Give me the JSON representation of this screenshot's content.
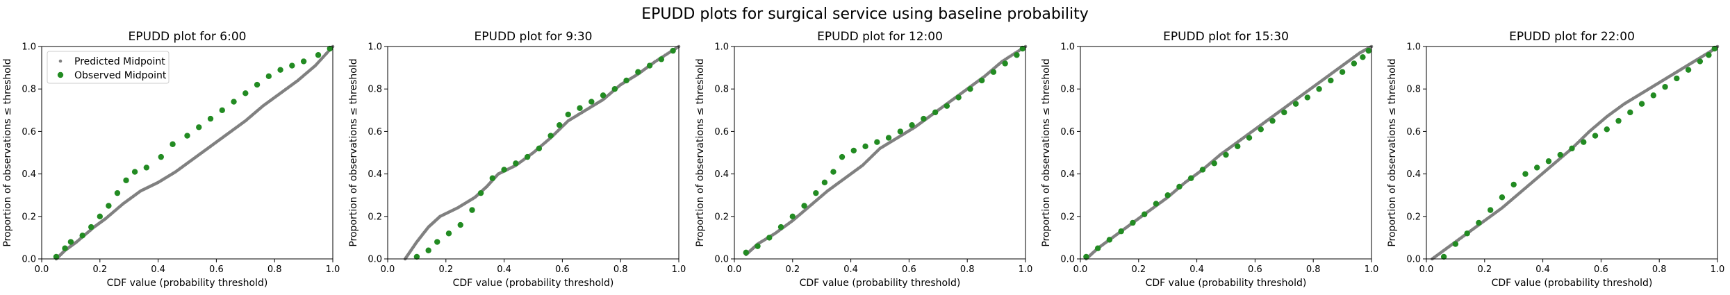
{
  "suptitle": "EPUDD plots for surgical service using baseline probability",
  "legend": {
    "predicted": "Predicted Midpoint",
    "observed": "Observed Midpoint",
    "placement": "upper-left of first panel"
  },
  "colors": {
    "predicted": "#808080",
    "observed": "#228b22",
    "background": "#ffffff"
  },
  "chart_data": [
    {
      "type": "scatter",
      "title": "EPUDD plot for 6:00",
      "xlabel": "CDF value (probability threshold)",
      "ylabel": "Proportion of observations ≤ threshold",
      "xlim": [
        0,
        1
      ],
      "ylim": [
        0,
        1
      ],
      "xticks": [
        "0.0",
        "0.2",
        "0.4",
        "0.6",
        "0.8",
        "1.0"
      ],
      "yticks": [
        "0.0",
        "0.2",
        "0.4",
        "0.6",
        "0.8",
        "1.0"
      ],
      "series": [
        {
          "name": "Predicted Midpoint",
          "points": [
            [
              0.05,
              0.0
            ],
            [
              0.08,
              0.04
            ],
            [
              0.12,
              0.08
            ],
            [
              0.18,
              0.15
            ],
            [
              0.22,
              0.19
            ],
            [
              0.28,
              0.26
            ],
            [
              0.34,
              0.32
            ],
            [
              0.4,
              0.36
            ],
            [
              0.46,
              0.41
            ],
            [
              0.52,
              0.47
            ],
            [
              0.58,
              0.53
            ],
            [
              0.64,
              0.59
            ],
            [
              0.7,
              0.65
            ],
            [
              0.76,
              0.72
            ],
            [
              0.82,
              0.78
            ],
            [
              0.88,
              0.84
            ],
            [
              0.94,
              0.91
            ],
            [
              1.0,
              1.0
            ]
          ]
        },
        {
          "name": "Observed Midpoint",
          "points": [
            [
              0.05,
              0.01
            ],
            [
              0.08,
              0.05
            ],
            [
              0.1,
              0.08
            ],
            [
              0.14,
              0.11
            ],
            [
              0.17,
              0.15
            ],
            [
              0.2,
              0.2
            ],
            [
              0.23,
              0.25
            ],
            [
              0.26,
              0.31
            ],
            [
              0.29,
              0.37
            ],
            [
              0.32,
              0.41
            ],
            [
              0.36,
              0.43
            ],
            [
              0.41,
              0.48
            ],
            [
              0.45,
              0.54
            ],
            [
              0.5,
              0.58
            ],
            [
              0.54,
              0.62
            ],
            [
              0.58,
              0.66
            ],
            [
              0.62,
              0.7
            ],
            [
              0.66,
              0.74
            ],
            [
              0.7,
              0.78
            ],
            [
              0.74,
              0.82
            ],
            [
              0.78,
              0.86
            ],
            [
              0.82,
              0.89
            ],
            [
              0.86,
              0.91
            ],
            [
              0.9,
              0.93
            ],
            [
              0.95,
              0.96
            ],
            [
              0.99,
              0.99
            ]
          ]
        }
      ]
    },
    {
      "type": "scatter",
      "title": "EPUDD plot for 9:30",
      "xlabel": "CDF value (probability threshold)",
      "ylabel": "Proportion of observations ≤ threshold",
      "xlim": [
        0,
        1
      ],
      "ylim": [
        0,
        1
      ],
      "xticks": [
        "0.0",
        "0.2",
        "0.4",
        "0.6",
        "0.8",
        "1.0"
      ],
      "yticks": [
        "0.0",
        "0.2",
        "0.4",
        "0.6",
        "0.8",
        "1.0"
      ],
      "series": [
        {
          "name": "Predicted Midpoint",
          "points": [
            [
              0.06,
              0.0
            ],
            [
              0.1,
              0.08
            ],
            [
              0.14,
              0.15
            ],
            [
              0.18,
              0.2
            ],
            [
              0.24,
              0.24
            ],
            [
              0.3,
              0.29
            ],
            [
              0.34,
              0.34
            ],
            [
              0.38,
              0.4
            ],
            [
              0.44,
              0.44
            ],
            [
              0.5,
              0.5
            ],
            [
              0.56,
              0.57
            ],
            [
              0.62,
              0.65
            ],
            [
              0.68,
              0.7
            ],
            [
              0.74,
              0.75
            ],
            [
              0.8,
              0.82
            ],
            [
              0.86,
              0.87
            ],
            [
              0.92,
              0.93
            ],
            [
              1.0,
              1.0
            ]
          ]
        },
        {
          "name": "Observed Midpoint",
          "points": [
            [
              0.1,
              0.01
            ],
            [
              0.14,
              0.04
            ],
            [
              0.17,
              0.08
            ],
            [
              0.21,
              0.12
            ],
            [
              0.25,
              0.16
            ],
            [
              0.29,
              0.23
            ],
            [
              0.32,
              0.31
            ],
            [
              0.36,
              0.38
            ],
            [
              0.4,
              0.42
            ],
            [
              0.44,
              0.45
            ],
            [
              0.48,
              0.48
            ],
            [
              0.52,
              0.52
            ],
            [
              0.56,
              0.58
            ],
            [
              0.59,
              0.63
            ],
            [
              0.62,
              0.68
            ],
            [
              0.66,
              0.71
            ],
            [
              0.7,
              0.74
            ],
            [
              0.74,
              0.77
            ],
            [
              0.78,
              0.8
            ],
            [
              0.82,
              0.84
            ],
            [
              0.86,
              0.88
            ],
            [
              0.9,
              0.91
            ],
            [
              0.94,
              0.94
            ],
            [
              0.98,
              0.98
            ]
          ]
        }
      ]
    },
    {
      "type": "scatter",
      "title": "EPUDD plot for 12:00",
      "xlabel": "CDF value (probability threshold)",
      "ylabel": "Proportion of observations ≤ threshold",
      "xlim": [
        0,
        1
      ],
      "ylim": [
        0,
        1
      ],
      "xticks": [
        "0.0",
        "0.2",
        "0.4",
        "0.6",
        "0.8",
        "1.0"
      ],
      "yticks": [
        "0.0",
        "0.2",
        "0.4",
        "0.6",
        "0.8",
        "1.0"
      ],
      "series": [
        {
          "name": "Predicted Midpoint",
          "points": [
            [
              0.04,
              0.02
            ],
            [
              0.08,
              0.07
            ],
            [
              0.14,
              0.12
            ],
            [
              0.2,
              0.18
            ],
            [
              0.26,
              0.25
            ],
            [
              0.32,
              0.32
            ],
            [
              0.38,
              0.38
            ],
            [
              0.44,
              0.44
            ],
            [
              0.5,
              0.52
            ],
            [
              0.56,
              0.57
            ],
            [
              0.62,
              0.62
            ],
            [
              0.68,
              0.68
            ],
            [
              0.74,
              0.74
            ],
            [
              0.8,
              0.8
            ],
            [
              0.86,
              0.86
            ],
            [
              0.92,
              0.93
            ],
            [
              1.0,
              1.0
            ]
          ]
        },
        {
          "name": "Observed Midpoint",
          "points": [
            [
              0.04,
              0.03
            ],
            [
              0.08,
              0.06
            ],
            [
              0.12,
              0.1
            ],
            [
              0.16,
              0.15
            ],
            [
              0.2,
              0.2
            ],
            [
              0.24,
              0.25
            ],
            [
              0.28,
              0.31
            ],
            [
              0.31,
              0.36
            ],
            [
              0.34,
              0.41
            ],
            [
              0.37,
              0.48
            ],
            [
              0.41,
              0.51
            ],
            [
              0.45,
              0.53
            ],
            [
              0.49,
              0.55
            ],
            [
              0.53,
              0.57
            ],
            [
              0.57,
              0.6
            ],
            [
              0.61,
              0.63
            ],
            [
              0.65,
              0.66
            ],
            [
              0.69,
              0.69
            ],
            [
              0.73,
              0.72
            ],
            [
              0.77,
              0.76
            ],
            [
              0.81,
              0.8
            ],
            [
              0.85,
              0.84
            ],
            [
              0.89,
              0.88
            ],
            [
              0.93,
              0.92
            ],
            [
              0.97,
              0.96
            ],
            [
              0.99,
              0.99
            ]
          ]
        }
      ]
    },
    {
      "type": "scatter",
      "title": "EPUDD plot for 15:30",
      "xlabel": "CDF value (probability threshold)",
      "ylabel": "Proportion of observations ≤ threshold",
      "xlim": [
        0,
        1
      ],
      "ylim": [
        0,
        1
      ],
      "xticks": [
        "0.0",
        "0.2",
        "0.4",
        "0.6",
        "0.8",
        "1.0"
      ],
      "yticks": [
        "0.0",
        "0.2",
        "0.4",
        "0.6",
        "0.8",
        "1.0"
      ],
      "series": [
        {
          "name": "Predicted Midpoint",
          "points": [
            [
              0.02,
              0.0
            ],
            [
              0.06,
              0.05
            ],
            [
              0.12,
              0.11
            ],
            [
              0.18,
              0.17
            ],
            [
              0.24,
              0.23
            ],
            [
              0.3,
              0.29
            ],
            [
              0.36,
              0.36
            ],
            [
              0.42,
              0.42
            ],
            [
              0.48,
              0.49
            ],
            [
              0.54,
              0.55
            ],
            [
              0.6,
              0.61
            ],
            [
              0.66,
              0.67
            ],
            [
              0.72,
              0.73
            ],
            [
              0.78,
              0.79
            ],
            [
              0.84,
              0.85
            ],
            [
              0.9,
              0.91
            ],
            [
              0.96,
              0.97
            ],
            [
              1.0,
              1.0
            ]
          ]
        },
        {
          "name": "Observed Midpoint",
          "points": [
            [
              0.02,
              0.01
            ],
            [
              0.06,
              0.05
            ],
            [
              0.1,
              0.09
            ],
            [
              0.14,
              0.13
            ],
            [
              0.18,
              0.17
            ],
            [
              0.22,
              0.21
            ],
            [
              0.26,
              0.26
            ],
            [
              0.3,
              0.3
            ],
            [
              0.34,
              0.34
            ],
            [
              0.38,
              0.38
            ],
            [
              0.42,
              0.42
            ],
            [
              0.46,
              0.45
            ],
            [
              0.5,
              0.49
            ],
            [
              0.54,
              0.53
            ],
            [
              0.58,
              0.57
            ],
            [
              0.62,
              0.61
            ],
            [
              0.66,
              0.65
            ],
            [
              0.7,
              0.69
            ],
            [
              0.74,
              0.73
            ],
            [
              0.78,
              0.76
            ],
            [
              0.82,
              0.8
            ],
            [
              0.86,
              0.84
            ],
            [
              0.9,
              0.88
            ],
            [
              0.94,
              0.92
            ],
            [
              0.97,
              0.95
            ],
            [
              0.99,
              0.98
            ]
          ]
        }
      ]
    },
    {
      "type": "scatter",
      "title": "EPUDD plot for 22:00",
      "xlabel": "CDF value (probability threshold)",
      "ylabel": "Proportion of observations ≤ threshold",
      "xlim": [
        0,
        1
      ],
      "ylim": [
        0,
        1
      ],
      "xticks": [
        "0.0",
        "0.2",
        "0.4",
        "0.6",
        "0.8",
        "1.0"
      ],
      "yticks": [
        "0.0",
        "0.2",
        "0.4",
        "0.6",
        "0.8",
        "1.0"
      ],
      "series": [
        {
          "name": "Predicted Midpoint",
          "points": [
            [
              0.02,
              0.0
            ],
            [
              0.08,
              0.06
            ],
            [
              0.14,
              0.12
            ],
            [
              0.2,
              0.18
            ],
            [
              0.26,
              0.24
            ],
            [
              0.32,
              0.31
            ],
            [
              0.38,
              0.38
            ],
            [
              0.44,
              0.45
            ],
            [
              0.5,
              0.52
            ],
            [
              0.56,
              0.6
            ],
            [
              0.62,
              0.67
            ],
            [
              0.68,
              0.73
            ],
            [
              0.74,
              0.78
            ],
            [
              0.8,
              0.83
            ],
            [
              0.86,
              0.88
            ],
            [
              0.92,
              0.93
            ],
            [
              0.98,
              0.98
            ],
            [
              1.0,
              1.0
            ]
          ]
        },
        {
          "name": "Observed Midpoint",
          "points": [
            [
              0.06,
              0.01
            ],
            [
              0.1,
              0.07
            ],
            [
              0.14,
              0.12
            ],
            [
              0.18,
              0.17
            ],
            [
              0.22,
              0.23
            ],
            [
              0.26,
              0.29
            ],
            [
              0.3,
              0.35
            ],
            [
              0.34,
              0.4
            ],
            [
              0.38,
              0.43
            ],
            [
              0.42,
              0.46
            ],
            [
              0.46,
              0.49
            ],
            [
              0.5,
              0.52
            ],
            [
              0.54,
              0.55
            ],
            [
              0.58,
              0.58
            ],
            [
              0.62,
              0.61
            ],
            [
              0.66,
              0.65
            ],
            [
              0.7,
              0.69
            ],
            [
              0.74,
              0.73
            ],
            [
              0.78,
              0.77
            ],
            [
              0.82,
              0.81
            ],
            [
              0.86,
              0.85
            ],
            [
              0.9,
              0.89
            ],
            [
              0.94,
              0.93
            ],
            [
              0.97,
              0.96
            ],
            [
              0.99,
              0.99
            ]
          ]
        }
      ]
    }
  ]
}
